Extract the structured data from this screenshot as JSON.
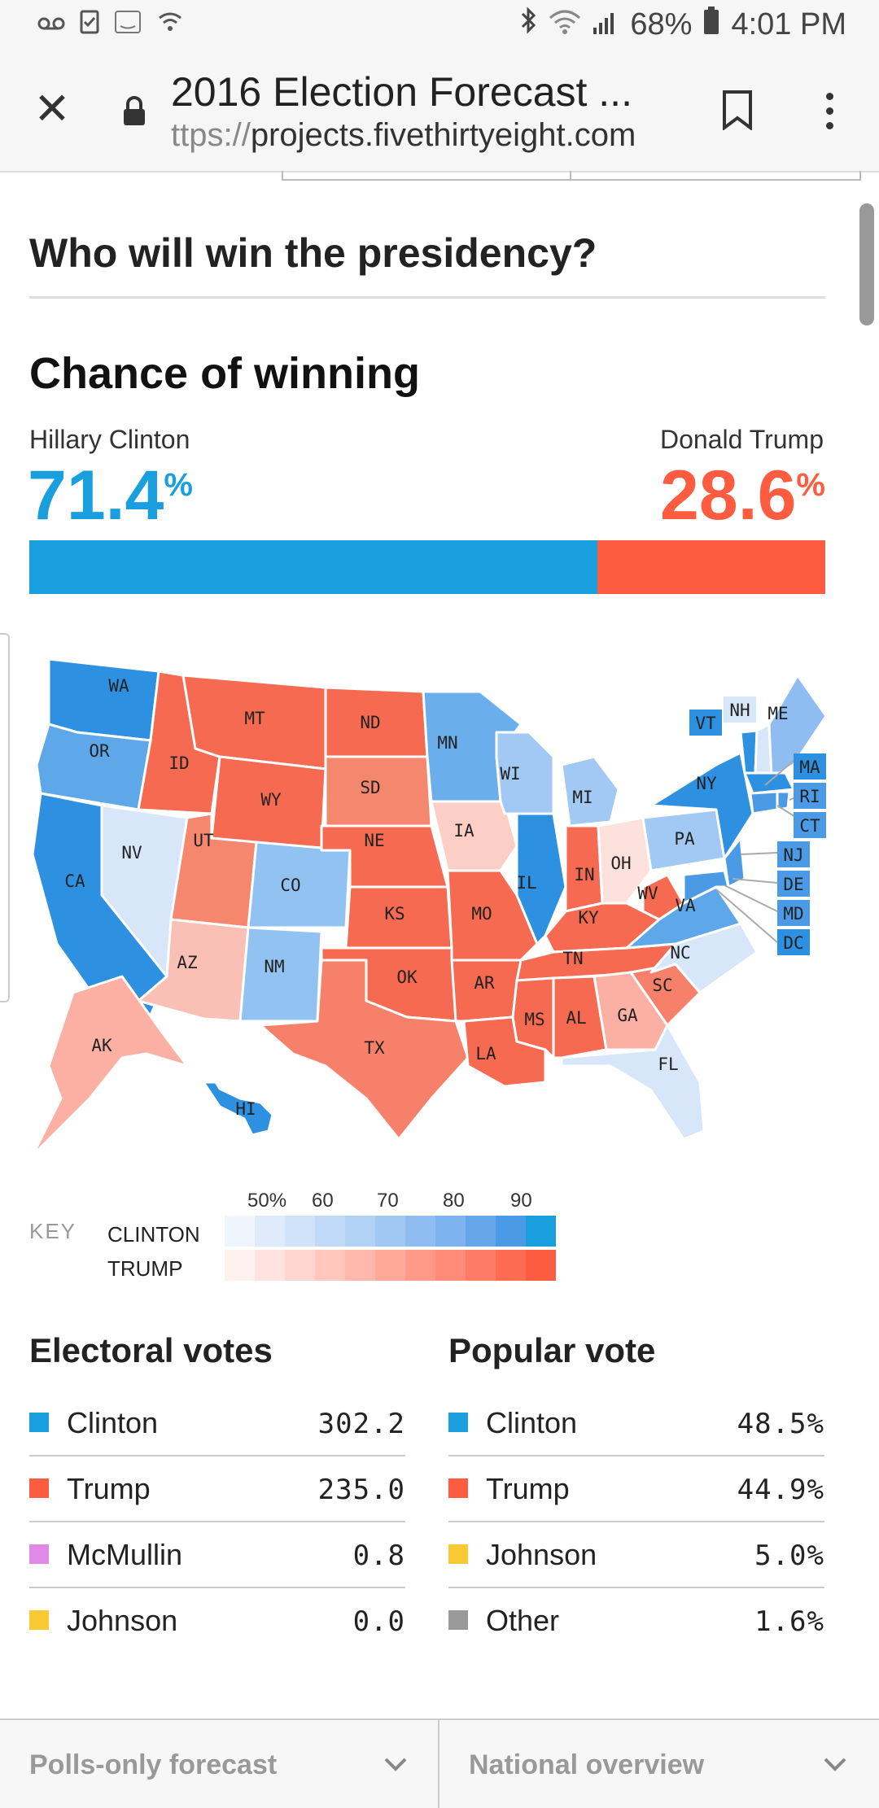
{
  "status_bar": {
    "battery": "68%",
    "time": "4:01 PM"
  },
  "browser": {
    "title": "2016 Election Forecast ...",
    "url_scheme": "ttps://",
    "url_host": "projects.fivethirtyeight.com"
  },
  "page": {
    "heading": "Who will win the presidency?",
    "chance_heading": "Chance of winning",
    "clinton": {
      "name": "Hillary Clinton",
      "pct": "71.4",
      "pct_sign": "%",
      "share": 71.4,
      "color": "#199fdd"
    },
    "trump": {
      "name": "Donald Trump",
      "pct": "28.6",
      "pct_sign": "%",
      "share": 28.6,
      "color": "#fe5c40"
    }
  },
  "map": {
    "state_labels": [
      "WA",
      "OR",
      "CA",
      "ID",
      "NV",
      "MT",
      "WY",
      "UT",
      "AZ",
      "CO",
      "NM",
      "ND",
      "SD",
      "NE",
      "KS",
      "OK",
      "TX",
      "MN",
      "IA",
      "MO",
      "AR",
      "LA",
      "WI",
      "IL",
      "MI",
      "IN",
      "OH",
      "KY",
      "TN",
      "MS",
      "AL",
      "GA",
      "FL",
      "SC",
      "NC",
      "VA",
      "WV",
      "PA",
      "NY",
      "VT",
      "NH",
      "ME",
      "MA",
      "RI",
      "CT",
      "NJ",
      "DE",
      "MD",
      "DC",
      "AK",
      "HI"
    ]
  },
  "key": {
    "label": "KEY",
    "rows": [
      "CLINTON",
      "TRUMP"
    ],
    "ticks": [
      "50%",
      "60",
      "70",
      "80",
      "90"
    ],
    "clinton_colors": [
      "#eef5fd",
      "#dfeafb",
      "#d0e3f9",
      "#bfd9f7",
      "#b1d1f5",
      "#a1c8f3",
      "#8fbdf1",
      "#7db3ee",
      "#66a7ea",
      "#4b9ae6",
      "#199fdd"
    ],
    "trump_colors": [
      "#fff1ef",
      "#ffe3df",
      "#ffd6cf",
      "#ffc7bd",
      "#ffb8ac",
      "#ffa99b",
      "#ff9a89",
      "#ff8b78",
      "#fe7c66",
      "#fe6b53",
      "#fe5c40"
    ]
  },
  "electoral": {
    "heading": "Electoral votes",
    "rows": [
      {
        "name": "Clinton",
        "value": "302.2",
        "color": "#199fdd"
      },
      {
        "name": "Trump",
        "value": "235.0",
        "color": "#fe5c40"
      },
      {
        "name": "McMullin",
        "value": "0.8",
        "color": "#e189e6"
      },
      {
        "name": "Johnson",
        "value": "0.0",
        "color": "#f9c933"
      }
    ]
  },
  "popular": {
    "heading": "Popular vote",
    "rows": [
      {
        "name": "Clinton",
        "value": "48.5%",
        "color": "#199fdd"
      },
      {
        "name": "Trump",
        "value": "44.9%",
        "color": "#fe5c40"
      },
      {
        "name": "Johnson",
        "value": "5.0%",
        "color": "#f9c933"
      },
      {
        "name": "Other",
        "value": "1.6%",
        "color": "#999999"
      }
    ]
  },
  "footer": {
    "left_select": "Polls-only forecast",
    "right_select": "National overview"
  }
}
